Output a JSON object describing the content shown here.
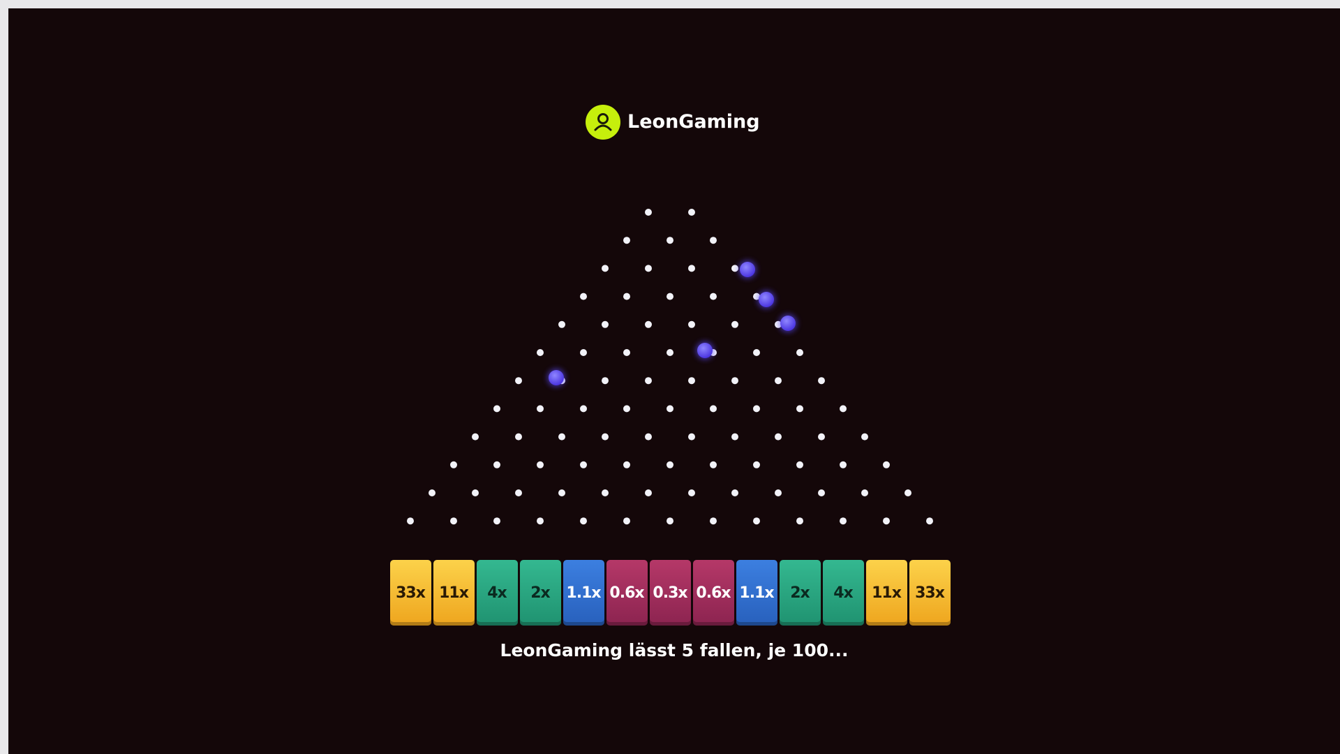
{
  "header": {
    "username": "LeonGaming"
  },
  "multipliers": [
    "33x",
    "11x",
    "4x",
    "2x",
    "1.1x",
    "0.6x",
    "0.3x",
    "0.6x",
    "1.1x",
    "2x",
    "4x",
    "11x",
    "33x"
  ],
  "status": "LeonGaming lässt 5 fallen, je 100..."
}
